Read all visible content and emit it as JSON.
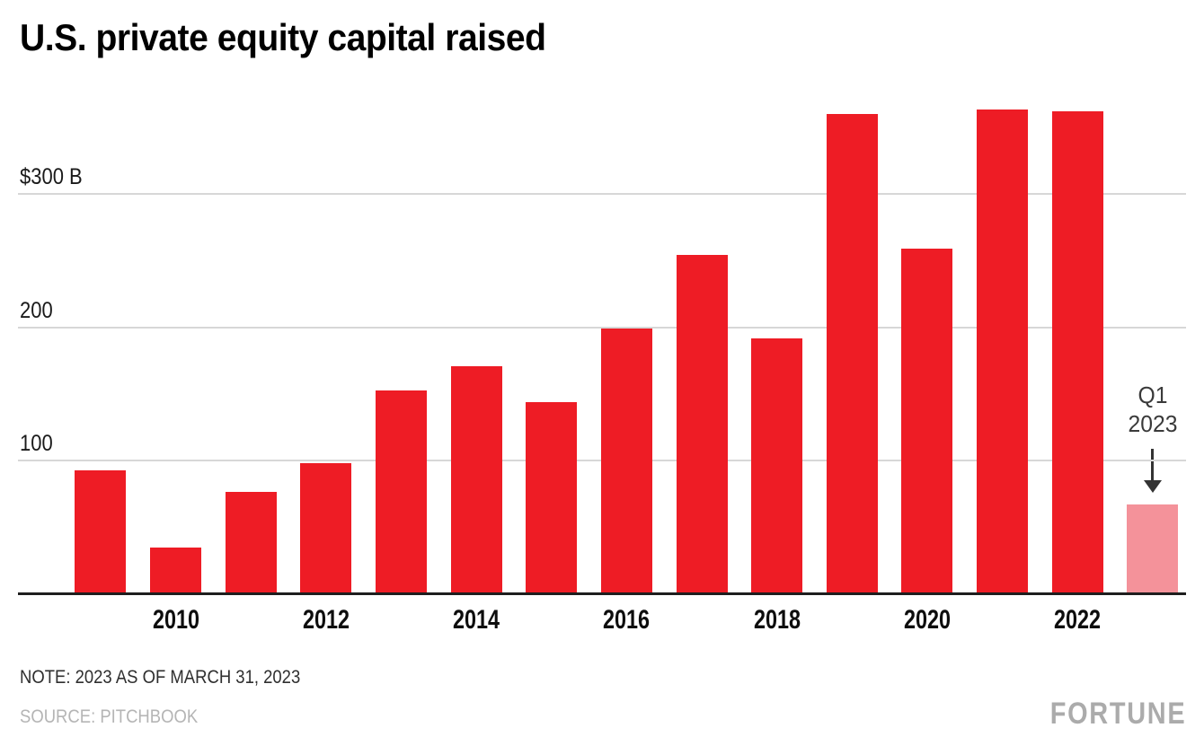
{
  "page": {
    "title": "U.S. private equity capital raised",
    "note": "NOTE: 2023 AS OF MARCH 31, 2023",
    "source": "SOURCE: PITCHBOOK",
    "brand": "FORTUNE"
  },
  "colors": {
    "bar": "#ee1c25",
    "bar_highlight": "#f4929a",
    "gridline": "#d7d7d7",
    "axis": "#1e1e1e",
    "tick_text": "#1a1a1a",
    "annotation_text": "#3a3a3a",
    "muted_text": "#b5b5b5",
    "brand_text": "#ababab"
  },
  "chart_data": {
    "type": "bar",
    "title": "U.S. private equity capital raised",
    "unit": "billions of U.S. dollars",
    "categories": [
      "2009",
      "2010",
      "2011",
      "2012",
      "2013",
      "2014",
      "2015",
      "2016",
      "2017",
      "2018",
      "2019",
      "2020",
      "2021",
      "2022",
      "Q1 2023"
    ],
    "values": [
      93,
      35,
      77,
      98,
      153,
      171,
      144,
      199,
      254,
      192,
      360,
      259,
      363,
      362,
      67
    ],
    "highlight_index": 14,
    "x_tick_labels": [
      "2010",
      "2012",
      "2014",
      "2016",
      "2018",
      "2020",
      "2022"
    ],
    "y_ticks": [
      {
        "value": 100,
        "label": "100"
      },
      {
        "value": 200,
        "label": "200"
      },
      {
        "value": 300,
        "label": "$300 B"
      }
    ],
    "ylim": [
      0,
      380
    ],
    "grid": "horizontal",
    "legend": "none",
    "xlabel": "",
    "ylabel": "",
    "annotation": {
      "lines": [
        "Q1",
        "2023"
      ],
      "target": "Q1 2023",
      "arrow": "down"
    }
  }
}
